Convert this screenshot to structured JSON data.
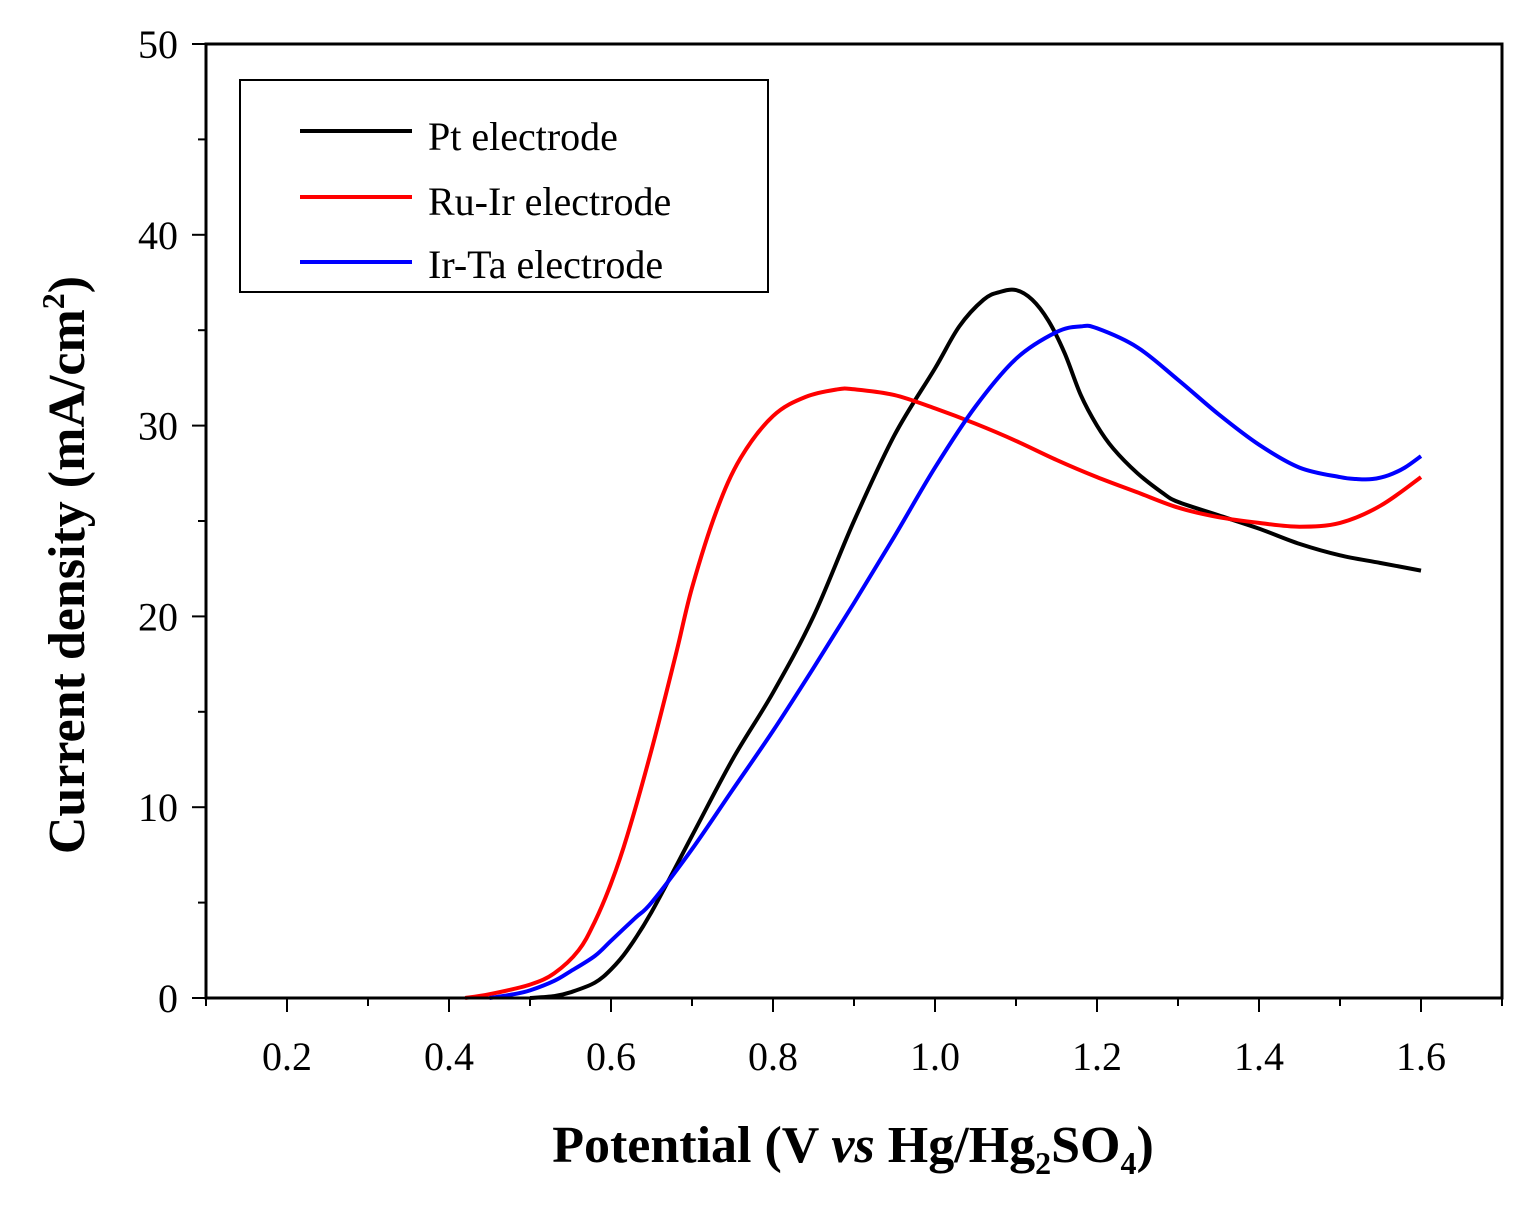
{
  "chart_data": {
    "type": "line",
    "xlabel": {
      "prefix": "Potential (V ",
      "italic": "vs",
      "mid": " Hg/Hg",
      "sub1": "2",
      "mid2": "SO",
      "sub2": "4",
      "suffix": ")"
    },
    "ylabel": {
      "main": "Current density (mA/cm",
      "sup": "2",
      "suffix": ")"
    },
    "xlim": [
      0.1,
      1.7
    ],
    "ylim": [
      0,
      50
    ],
    "xticks": [
      0.2,
      0.4,
      0.6,
      0.8,
      1.0,
      1.2,
      1.4,
      1.6
    ],
    "xtick_labels": [
      "0.2",
      "0.4",
      "0.6",
      "0.8",
      "1.0",
      "1.2",
      "1.4",
      "1.6"
    ],
    "yticks": [
      0,
      10,
      20,
      30,
      40,
      50
    ],
    "ytick_labels": [
      "0",
      "10",
      "20",
      "30",
      "40",
      "50"
    ],
    "legend_position": "top-left",
    "series": [
      {
        "name": "Pt electrode",
        "color": "#000000",
        "x": [
          0.5,
          0.53,
          0.55,
          0.58,
          0.6,
          0.62,
          0.65,
          0.7,
          0.75,
          0.8,
          0.85,
          0.9,
          0.95,
          1.0,
          1.03,
          1.06,
          1.08,
          1.1,
          1.12,
          1.14,
          1.16,
          1.18,
          1.2,
          1.22,
          1.25,
          1.28,
          1.3,
          1.35,
          1.4,
          1.45,
          1.5,
          1.55,
          1.6
        ],
        "y": [
          0.0,
          0.1,
          0.3,
          0.8,
          1.5,
          2.5,
          4.5,
          8.5,
          12.5,
          16.0,
          20.0,
          25.0,
          29.5,
          33.0,
          35.2,
          36.6,
          37.0,
          37.1,
          36.6,
          35.5,
          33.8,
          31.6,
          30.0,
          28.8,
          27.5,
          26.5,
          26.0,
          25.3,
          24.6,
          23.8,
          23.2,
          22.8,
          22.4
        ]
      },
      {
        "name": "Ru-Ir electrode",
        "color": "#ff0000",
        "x": [
          0.42,
          0.45,
          0.5,
          0.53,
          0.56,
          0.58,
          0.6,
          0.62,
          0.65,
          0.68,
          0.7,
          0.73,
          0.76,
          0.8,
          0.84,
          0.88,
          0.9,
          0.95,
          1.0,
          1.05,
          1.1,
          1.15,
          1.2,
          1.25,
          1.3,
          1.35,
          1.4,
          1.45,
          1.5,
          1.55,
          1.6
        ],
        "y": [
          0.0,
          0.2,
          0.7,
          1.3,
          2.5,
          4.0,
          6.0,
          8.5,
          13.0,
          18.0,
          21.5,
          25.5,
          28.3,
          30.5,
          31.5,
          31.9,
          31.9,
          31.6,
          30.9,
          30.1,
          29.2,
          28.2,
          27.3,
          26.5,
          25.7,
          25.2,
          24.9,
          24.7,
          24.9,
          25.8,
          27.3
        ]
      },
      {
        "name": "Ir-Ta electrode",
        "color": "#0000ff",
        "x": [
          0.45,
          0.48,
          0.5,
          0.53,
          0.55,
          0.58,
          0.6,
          0.63,
          0.65,
          0.7,
          0.75,
          0.8,
          0.85,
          0.9,
          0.95,
          1.0,
          1.05,
          1.1,
          1.15,
          1.18,
          1.2,
          1.25,
          1.3,
          1.35,
          1.4,
          1.45,
          1.5,
          1.52,
          1.54,
          1.56,
          1.58,
          1.6
        ],
        "y": [
          0.0,
          0.2,
          0.4,
          0.9,
          1.4,
          2.2,
          3.0,
          4.2,
          5.0,
          7.8,
          10.9,
          14.0,
          17.3,
          20.7,
          24.2,
          27.8,
          31.0,
          33.5,
          34.9,
          35.2,
          35.1,
          34.1,
          32.4,
          30.6,
          29.0,
          27.8,
          27.3,
          27.2,
          27.2,
          27.4,
          27.8,
          28.4
        ]
      }
    ]
  }
}
